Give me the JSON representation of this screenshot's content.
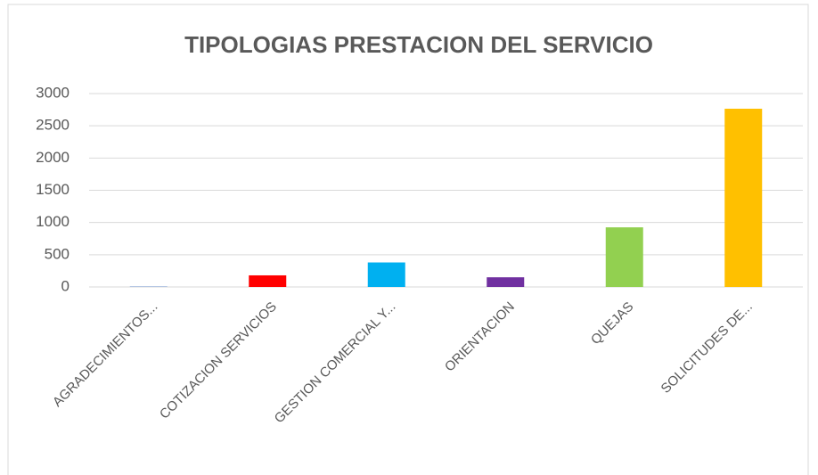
{
  "chart_data": {
    "type": "bar",
    "title": "TIPOLOGIAS PRESTACION DEL SERVICIO",
    "categories": [
      "AGRADECIMIENTOS...",
      "COTIZACION SERVICIOS",
      "GESTION COMERCIAL Y...",
      "ORIENTACION",
      "QUEJAS",
      "SOLICITUDES DE..."
    ],
    "values": [
      5,
      180,
      380,
      150,
      925,
      2765
    ],
    "colors": [
      "#4472c4",
      "#ff0000",
      "#00b0f0",
      "#7030a0",
      "#92d050",
      "#ffc000"
    ],
    "ylim": [
      0,
      3000
    ],
    "yticks": [
      0,
      500,
      1000,
      1500,
      2000,
      2500,
      3000
    ],
    "grid": true
  }
}
